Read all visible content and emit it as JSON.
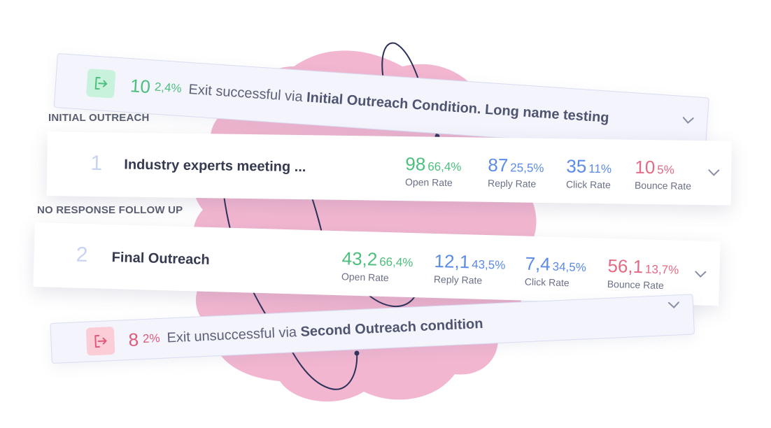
{
  "exit_success": {
    "count": "10",
    "percent": "2,4%",
    "text_prefix": "Exit successful via",
    "condition": "Initial Outreach Condition. Long name testing",
    "icon": "exit-arrow-icon",
    "color": "#4dbf7d"
  },
  "sections": {
    "initial": "INITIAL OUTREACH",
    "followup": "NO RESPONSE FOLLOW UP"
  },
  "steps": [
    {
      "number": "1",
      "name": "Industry experts meeting ...",
      "stats": [
        {
          "value": "98",
          "percent": "66,4%",
          "label": "Open Rate"
        },
        {
          "value": "87",
          "percent": "25,5%",
          "label": "Reply Rate"
        },
        {
          "value": "35",
          "percent": "11%",
          "label": "Click Rate"
        },
        {
          "value": "10",
          "percent": "5%",
          "label": "Bounce Rate"
        }
      ]
    },
    {
      "number": "2",
      "name": "Final Outreach",
      "stats": [
        {
          "value": "43,2",
          "percent": "66,4%",
          "label": "Open Rate"
        },
        {
          "value": "12,1",
          "percent": "43,5%",
          "label": "Reply Rate"
        },
        {
          "value": "7,4",
          "percent": "34,5%",
          "label": "Click Rate"
        },
        {
          "value": "56,1",
          "percent": "13,7%",
          "label": "Bounce Rate"
        }
      ]
    }
  ],
  "exit_fail": {
    "count": "8",
    "percent": "2%",
    "text_prefix": "Exit unsuccessful via",
    "condition": "Second Outreach condition",
    "icon": "exit-arrow-icon",
    "color": "#e05a78"
  },
  "colors": {
    "open": "#4dbf7d",
    "reply": "#5b8be8",
    "click": "#5b8be8",
    "bounce": "#e46a84",
    "blob": "#f2b6d0",
    "curve": "#2d3159"
  }
}
